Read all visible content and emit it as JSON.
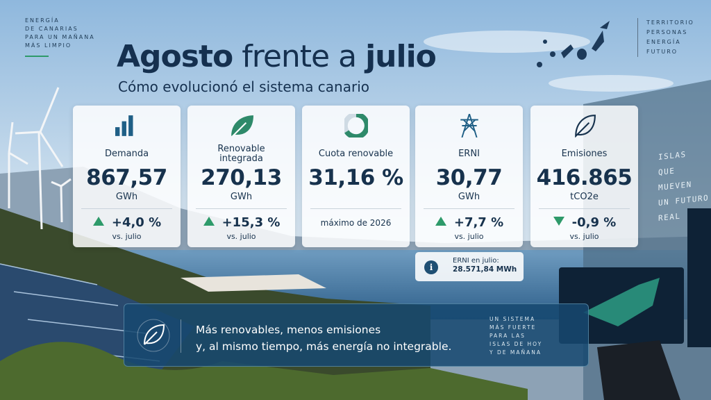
{
  "brand": {
    "lines": [
      "ENERGÍA",
      "DE CANARIAS",
      "PARA UN MAÑANA",
      "MÁS LIMPIO"
    ]
  },
  "header": {
    "title": [
      "Agosto",
      "frente a",
      "julio"
    ],
    "subtitle": "Cómo evolucionó el sistema canario"
  },
  "tags": [
    "TERRITORIO",
    "PERSONAS",
    "ENERGÍA",
    "FUTURO"
  ],
  "cards": [
    {
      "label": "Demanda",
      "value": "867,57",
      "unit": "GWh",
      "change": "+4,0 %",
      "comparison": "vs. julio"
    },
    {
      "label": "Renovable integrada",
      "value": "270,13",
      "unit": "GWh",
      "change": "+15,3 %",
      "comparison": "vs. julio"
    },
    {
      "label": "Cuota renovable",
      "value": "31,16 %",
      "note": "máximo de 2026"
    },
    {
      "label": "ERNI",
      "value": "30,77",
      "unit": "GWh",
      "change": "+7,7 %",
      "comparison": "vs. julio"
    },
    {
      "label": "Emisiones",
      "value": "416.865",
      "unit": "tCO2e",
      "change": "-0,9 %",
      "comparison": "vs. julio"
    }
  ],
  "info": {
    "label": "ERNI en julio:",
    "value": "28.571,84 MWh"
  },
  "side_text": [
    "ISLAS",
    "QUE MUEVEN",
    "UN FUTURO",
    "REAL"
  ],
  "banner": {
    "lines": [
      "Más renovables, menos emisiones",
      "y, al mismo tiempo, más energía no integrable."
    ],
    "side": [
      "UN SISTEMA",
      "MÁS FUERTE",
      "PARA LAS",
      "ISLAS DE HOY",
      "Y DE MAÑANA"
    ]
  }
}
